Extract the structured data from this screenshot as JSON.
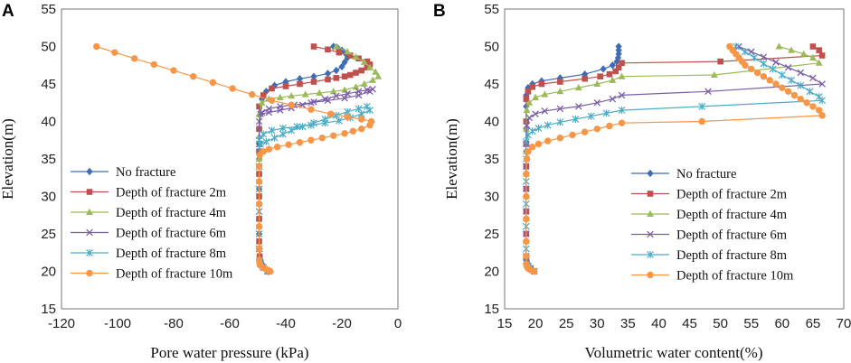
{
  "chart_data": [
    {
      "type": "line",
      "panel": "A",
      "xlabel": "Pore water pressure (kPa)",
      "ylabel": "Elevation(m)",
      "xlim": [
        -120,
        0
      ],
      "ylim": [
        15,
        55
      ],
      "xticks": [
        "-120",
        "-100",
        "-80",
        "-60",
        "-40",
        "-20",
        "0"
      ],
      "yticks": [
        "15",
        "20",
        "25",
        "30",
        "35",
        "40",
        "45",
        "50",
        "55"
      ],
      "series": [
        {
          "name": "No fracture",
          "color": "#3e6db5",
          "marker": "diamond",
          "x": [
            -23,
            -21.5,
            -20,
            -19,
            -18.5,
            -18,
            -19,
            -20,
            -22,
            -25,
            -30,
            -35,
            -40,
            -44,
            -47,
            -48.5,
            -49,
            -49.5,
            -49.5,
            -49.5,
            -49.5,
            -49.5,
            -49.5,
            -49.5,
            -49.5,
            -49.3,
            -49,
            -48.5,
            -47.5,
            -46
          ],
          "y": [
            50,
            49.8,
            49.5,
            49.2,
            49,
            48.5,
            47.9,
            47.3,
            46.8,
            46.4,
            46,
            45.7,
            45.3,
            44.8,
            44,
            43,
            41,
            39,
            37,
            35,
            33,
            31,
            29,
            27,
            25,
            23,
            21.5,
            21,
            20.5,
            20
          ]
        },
        {
          "name": "Depth of fracture 2m",
          "color": "#c0504d",
          "marker": "square",
          "x": [
            -30,
            -25,
            -21,
            -17,
            -14,
            -11,
            -10,
            -11,
            -13,
            -15,
            -17,
            -19,
            -22,
            -25,
            -30,
            -35,
            -40,
            -45,
            -48,
            -49.5,
            -49.5,
            -49.5,
            -49.5,
            -49.5,
            -49.5,
            -49.5,
            -49.3,
            -49,
            -48,
            -46.5
          ],
          "y": [
            50,
            49.6,
            49.2,
            48.8,
            48.4,
            48,
            47.6,
            47.2,
            46.8,
            46.5,
            46.2,
            46,
            45.8,
            45.6,
            45.3,
            45,
            44.7,
            44.4,
            43.5,
            42,
            39,
            36,
            33,
            30,
            27,
            24,
            22,
            21,
            20.5,
            20
          ]
        },
        {
          "name": "Depth of fracture 4m",
          "color": "#9bbb59",
          "marker": "triangle",
          "x": [
            -22,
            -18,
            -15,
            -12,
            -10,
            -8,
            -7,
            -9,
            -12,
            -15,
            -19,
            -23,
            -28,
            -33,
            -38,
            -42,
            -46,
            -48.5,
            -49.5,
            -49.5,
            -49.5,
            -49.5,
            -49.5,
            -49.5,
            -49.5,
            -49.3,
            -49,
            -48,
            -46.5
          ],
          "y": [
            50,
            49.3,
            48.6,
            47.9,
            47.2,
            46.6,
            46,
            45.5,
            45,
            44.6,
            44.2,
            44,
            43.8,
            43.6,
            43.4,
            43.2,
            43,
            42.5,
            41,
            38,
            35,
            32,
            29,
            26,
            23,
            21.5,
            21,
            20.5,
            20
          ]
        },
        {
          "name": "Depth of fracture 6m",
          "color": "#7b5ea7",
          "marker": "x",
          "x": [
            -49,
            -46,
            -42,
            -38,
            -34,
            -30,
            -26,
            -22,
            -18,
            -14,
            -11,
            -9,
            -10,
            -14,
            -19,
            -25,
            -31,
            -37,
            -42,
            -46,
            -48.5,
            -49.5,
            -49.5,
            -49.5,
            -49.5,
            -49.5,
            -49.5,
            -49.5,
            -49.3,
            -49,
            -48,
            -46.5
          ],
          "y": [
            41,
            41.2,
            41.5,
            41.8,
            42.2,
            42.6,
            43,
            43.4,
            43.7,
            44,
            44.2,
            44.3,
            44,
            43.5,
            43.1,
            42.8,
            42.5,
            42.2,
            42,
            41.7,
            41.2,
            40,
            37,
            34,
            31,
            28,
            25,
            23,
            21.5,
            21,
            20.5,
            20
          ]
        },
        {
          "name": "Depth of fracture 8m",
          "color": "#4bacc6",
          "marker": "asterisk",
          "x": [
            -49,
            -47,
            -44,
            -41,
            -38,
            -34,
            -30,
            -26,
            -22,
            -18,
            -14,
            -11,
            -10,
            -13,
            -17,
            -21,
            -26,
            -31,
            -36,
            -41,
            -45,
            -48,
            -49.5,
            -49.5,
            -49.5,
            -49.5,
            -49.5,
            -49.5,
            -49.3,
            -49,
            -48,
            -46.5
          ],
          "y": [
            37,
            37.3,
            37.8,
            38.3,
            38.8,
            39.3,
            39.8,
            40.3,
            40.8,
            41.3,
            41.7,
            42,
            41.5,
            41,
            40.5,
            40.1,
            39.8,
            39.5,
            39.3,
            39.1,
            38.8,
            38.3,
            37.5,
            34,
            31,
            28,
            25,
            23,
            21.5,
            21,
            20.5,
            20
          ]
        },
        {
          "name": "Depth of fracture 10m",
          "color": "#f79646",
          "marker": "circle",
          "x": [
            -107.5,
            -101,
            -94,
            -87,
            -80,
            -73,
            -66,
            -59,
            -52,
            -45,
            -38,
            -31,
            -24,
            -18,
            -13,
            -9.5,
            -10,
            -13,
            -16,
            -19,
            -23,
            -27,
            -31,
            -35,
            -39,
            -43,
            -46,
            -48,
            -49.3,
            -49.5,
            -49.5,
            -49.5,
            -49.5,
            -49.5,
            -49.5,
            -49.3,
            -49,
            -48.5,
            -47.5,
            -46.5,
            -45.5
          ],
          "y": [
            50,
            49.2,
            48.4,
            47.6,
            46.8,
            46,
            45.2,
            44.4,
            43.6,
            42.8,
            42.2,
            41.6,
            41,
            40.6,
            40.3,
            40,
            39.5,
            39,
            38.7,
            38.4,
            38.1,
            37.8,
            37.5,
            37.2,
            36.9,
            36.6,
            36.3,
            36,
            35.5,
            34,
            32,
            29,
            26,
            23,
            21.5,
            21,
            20.8,
            20.6,
            20.4,
            20.2,
            20
          ]
        }
      ],
      "legend": [
        "No fracture",
        "Depth of fracture 2m",
        "Depth of fracture 4m",
        "Depth of fracture 6m",
        "Depth of fracture 8m",
        "Depth of fracture 10m"
      ],
      "legend_position": "lower-left"
    },
    {
      "type": "line",
      "panel": "B",
      "xlabel": "Volumetric water content(%)",
      "ylabel": "Elevation(m)",
      "xlim": [
        15,
        70
      ],
      "ylim": [
        15,
        55
      ],
      "xticks": [
        "15",
        "20",
        "25",
        "30",
        "35",
        "40",
        "45",
        "50",
        "55",
        "60",
        "65",
        "70"
      ],
      "yticks": [
        "15",
        "20",
        "25",
        "30",
        "35",
        "40",
        "45",
        "50",
        "55"
      ],
      "series": [
        {
          "name": "No fracture",
          "color": "#3e6db5",
          "marker": "diamond",
          "x": [
            33.5,
            33.5,
            33.5,
            33.4,
            33.2,
            32.5,
            31,
            28,
            24,
            21,
            19.5,
            18.8,
            18.5,
            18.5,
            18.5,
            18.5,
            18.5,
            18.5,
            18.5,
            18.5,
            18.5,
            18.5,
            18.6,
            18.8,
            19.2,
            19.8
          ],
          "y": [
            50,
            49.5,
            49,
            48.5,
            48,
            47.5,
            47,
            46.3,
            45.8,
            45.4,
            45,
            44.5,
            43.5,
            42,
            39,
            36,
            33,
            30,
            27,
            24,
            22,
            21.5,
            21,
            20.7,
            20.4,
            20
          ]
        },
        {
          "name": "Depth of fracture 2m",
          "color": "#c0504d",
          "marker": "square",
          "x": [
            65,
            66,
            66.5,
            50,
            34,
            33.5,
            33,
            32,
            30.5,
            28,
            24,
            21,
            19.5,
            18.8,
            18.5,
            18.5,
            18.5,
            18.5,
            18.5,
            18.5,
            18.5,
            18.5,
            18.6,
            18.8,
            19.2,
            19.8
          ],
          "y": [
            50,
            49.5,
            48.8,
            48,
            47.8,
            47.2,
            46.7,
            46.3,
            46,
            45.7,
            45.3,
            45,
            44.6,
            44,
            43,
            40,
            37,
            34,
            31,
            28,
            25,
            22,
            21,
            20.7,
            20.4,
            20
          ]
        },
        {
          "name": "Depth of fracture 4m",
          "color": "#9bbb59",
          "marker": "triangle",
          "x": [
            59.5,
            61.5,
            63.5,
            65,
            66,
            49,
            34,
            32.5,
            30,
            27,
            24,
            21.5,
            20,
            19,
            18.6,
            18.5,
            18.5,
            18.5,
            18.5,
            18.5,
            18.5,
            18.5,
            18.6,
            18.8,
            19.2,
            19.8
          ],
          "y": [
            50,
            49.5,
            49,
            48.5,
            47.8,
            46.2,
            46,
            45.5,
            45,
            44.5,
            44,
            43.6,
            43.2,
            42.5,
            41.5,
            39,
            36,
            33,
            30,
            27,
            24,
            22,
            21,
            20.7,
            20.4,
            20
          ]
        },
        {
          "name": "Depth of fracture 6m",
          "color": "#7b5ea7",
          "marker": "x",
          "x": [
            53,
            55,
            57,
            59,
            61,
            63,
            65,
            66.5,
            48,
            34,
            32.5,
            30,
            27,
            24,
            21.5,
            20,
            19,
            18.6,
            18.5,
            18.5,
            18.5,
            18.5,
            18.5,
            18.5,
            18.6,
            18.8,
            19.2,
            19.8
          ],
          "y": [
            50,
            49.3,
            48.6,
            47.9,
            47.2,
            46.5,
            45.8,
            45,
            44,
            43.5,
            43,
            42.5,
            42,
            41.7,
            41.4,
            41,
            40.5,
            39.5,
            37,
            34,
            31,
            28,
            25,
            22,
            21,
            20.7,
            20.4,
            20
          ]
        },
        {
          "name": "Depth of fracture 8m",
          "color": "#4bacc6",
          "marker": "asterisk",
          "x": [
            52.5,
            54,
            55.5,
            57,
            58.5,
            60,
            61.5,
            63,
            64.5,
            66,
            66.5,
            47,
            34,
            31.5,
            29,
            26.5,
            24,
            22,
            20.5,
            19.5,
            18.8,
            18.5,
            18.5,
            18.5,
            18.5,
            18.5,
            18.5,
            18.6,
            18.8,
            19.2,
            19.8
          ],
          "y": [
            50,
            49.3,
            48.5,
            47.7,
            47,
            46.2,
            45.5,
            44.8,
            44,
            43.3,
            42.8,
            42,
            41.5,
            41.1,
            40.7,
            40.3,
            39.9,
            39.5,
            39.1,
            38.7,
            38.2,
            37.3,
            35,
            32,
            29,
            26,
            23,
            21,
            20.7,
            20.4,
            20
          ]
        },
        {
          "name": "Depth of fracture 10m",
          "color": "#f79646",
          "marker": "circle",
          "x": [
            51.5,
            52,
            52.5,
            53,
            53.5,
            54,
            55,
            56,
            57,
            58,
            59,
            60,
            61,
            62,
            63,
            64,
            65,
            66,
            66.5,
            47,
            34,
            32,
            30,
            28,
            26,
            24,
            22,
            20.5,
            19.5,
            18.8,
            18.6,
            18.5,
            18.5,
            18.5,
            18.5,
            18.5,
            18.5,
            18.6,
            18.8,
            19.2,
            19.8
          ],
          "y": [
            50,
            49.5,
            49,
            48.5,
            48,
            47.5,
            47,
            46.5,
            46,
            45.5,
            45,
            44.5,
            44,
            43.5,
            43,
            42.5,
            42,
            41.5,
            40.8,
            40,
            39.8,
            39.4,
            39,
            38.6,
            38.2,
            37.8,
            37.4,
            37,
            36.6,
            36,
            35,
            33,
            30,
            27,
            24,
            22,
            21,
            20.7,
            20.4,
            20.2,
            20
          ]
        }
      ],
      "legend": [
        "No fracture",
        "Depth of fracture 2m",
        "Depth of fracture 4m",
        "Depth of fracture 6m",
        "Depth of fracture 8m",
        "Depth of fracture 10m"
      ],
      "legend_position": "lower-right"
    }
  ]
}
